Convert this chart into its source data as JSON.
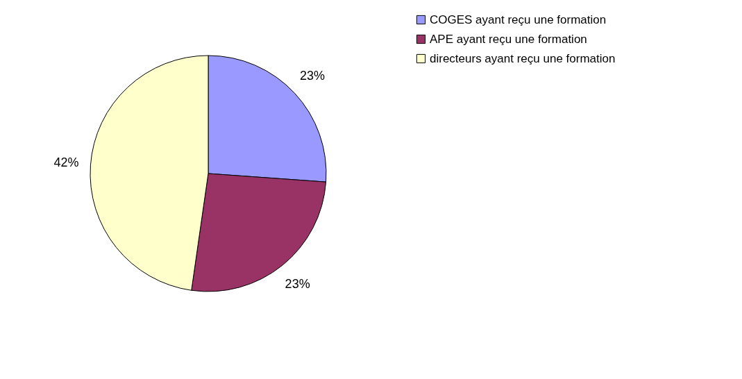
{
  "chart_data": {
    "type": "pie",
    "categories": [
      "COGES ayant reçu une formation",
      "APE ayant reçu une formation",
      "directeurs ayant reçu une formation"
    ],
    "values": [
      23,
      23,
      42
    ],
    "colors": [
      "#9999ff",
      "#993366",
      "#ffffcc"
    ],
    "value_labels": [
      "23%",
      "23%",
      "42%"
    ],
    "legend": "right"
  }
}
